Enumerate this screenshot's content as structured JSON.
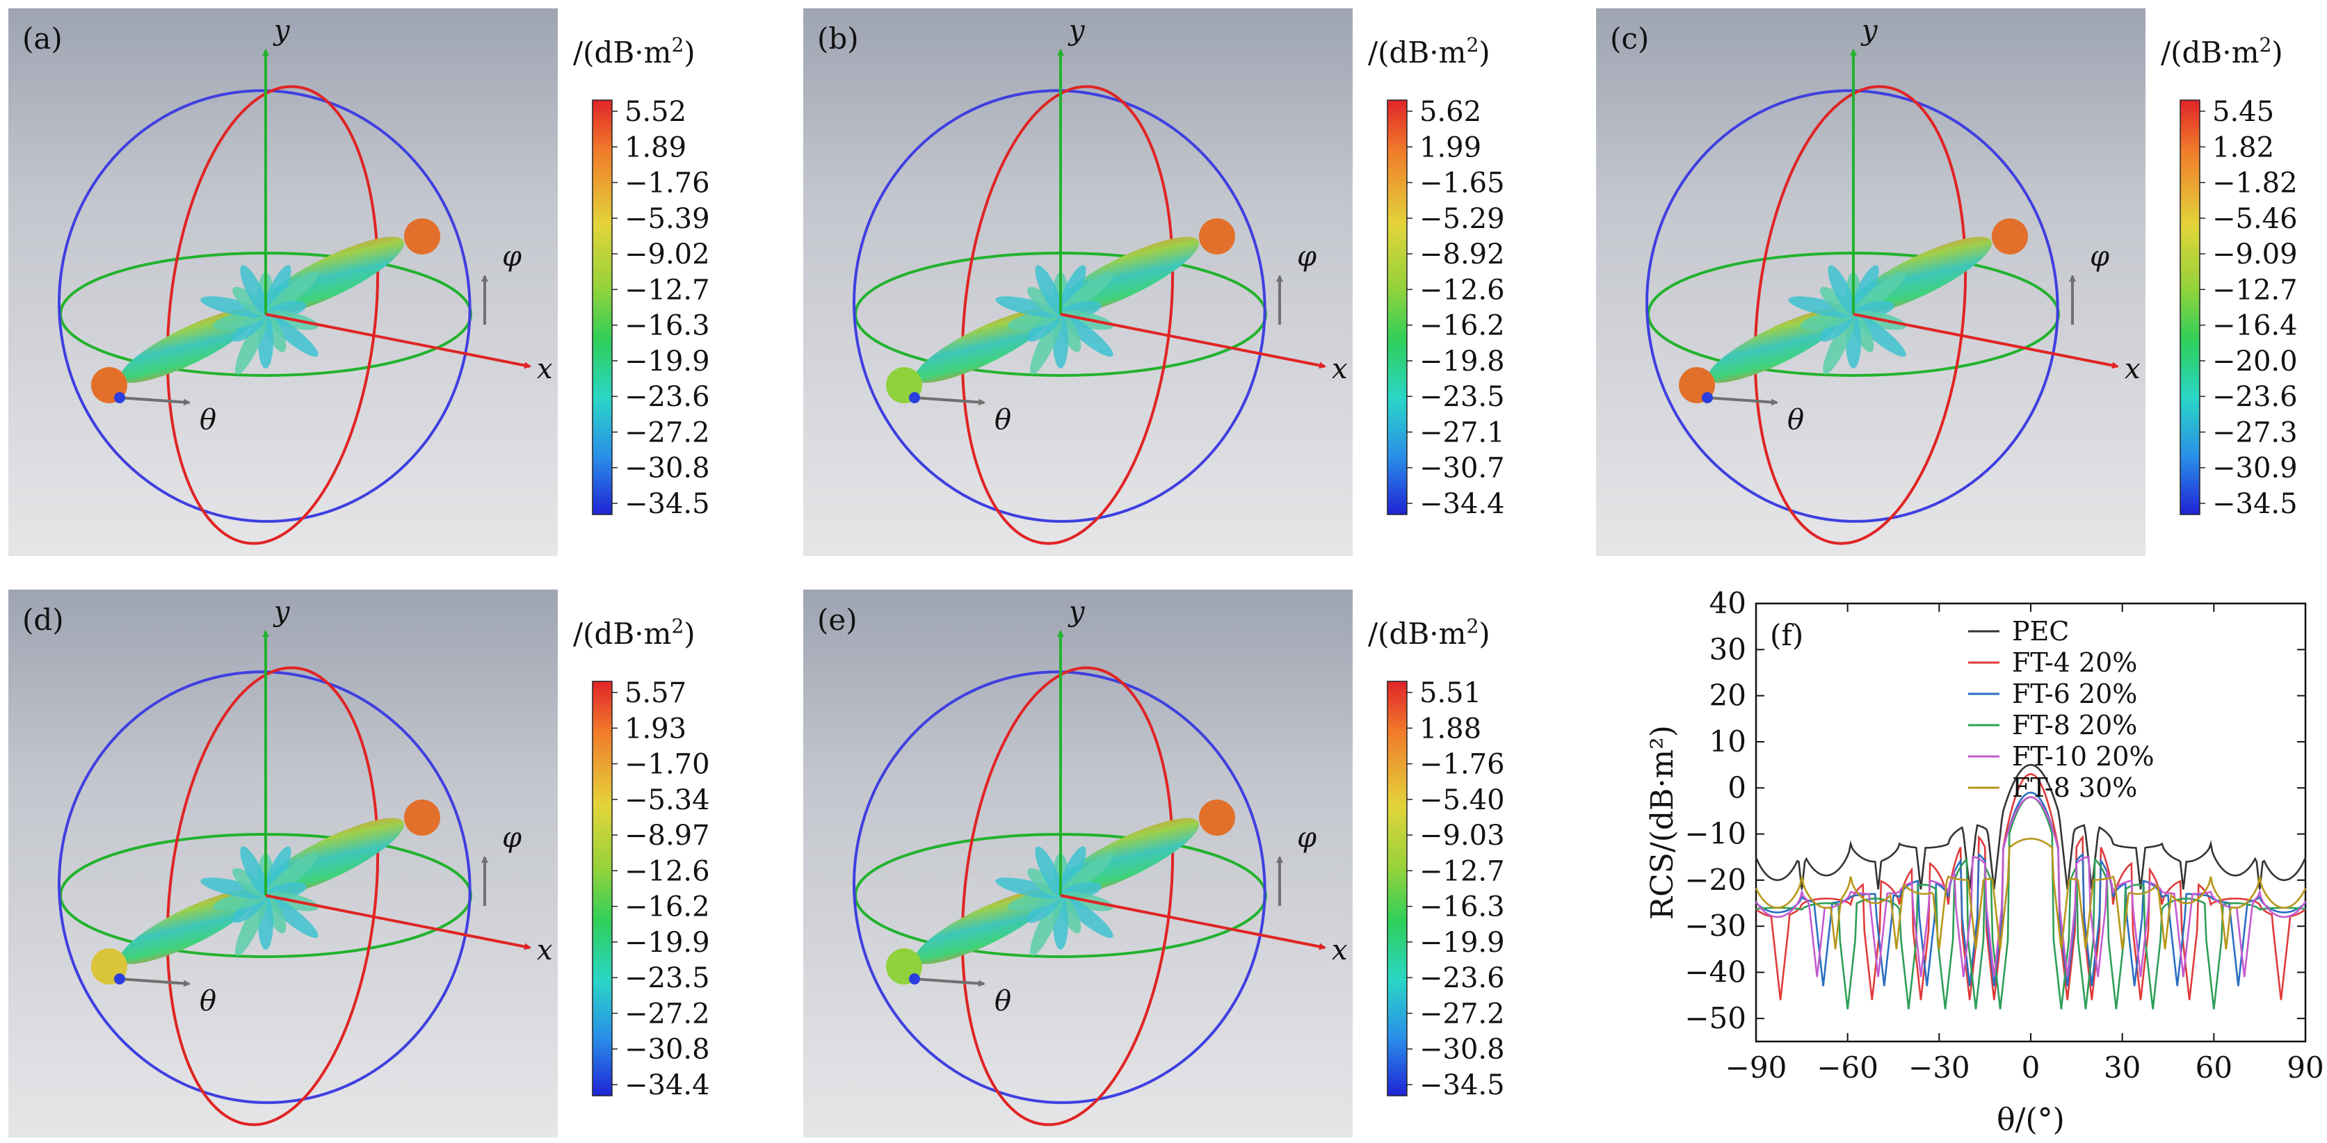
{
  "figure_labels": {
    "unit_title_prefix": "/(dB·m",
    "unit_sup": "2",
    "unit_suffix": ")",
    "axis_x": "x",
    "axis_y": "y",
    "theta": "θ",
    "phi": "φ"
  },
  "panels": [
    {
      "label": "(a)",
      "scale": [
        "5.52",
        "1.89",
        "−1.76",
        "−5.39",
        "−9.02",
        "−12.7",
        "−16.3",
        "−19.9",
        "−23.6",
        "−27.2",
        "−30.8",
        "−34.5"
      ],
      "lobe_tip": "orange"
    },
    {
      "label": "(b)",
      "scale": [
        "5.62",
        "1.99",
        "−1.65",
        "−5.29",
        "−8.92",
        "−12.6",
        "−16.2",
        "−19.8",
        "−23.5",
        "−27.1",
        "−30.7",
        "−34.4"
      ],
      "lobe_tip": "green"
    },
    {
      "label": "(c)",
      "scale": [
        "5.45",
        "1.82",
        "−1.82",
        "−5.46",
        "−9.09",
        "−12.7",
        "−16.4",
        "−20.0",
        "−23.6",
        "−27.3",
        "−30.9",
        "−34.5"
      ],
      "lobe_tip": "orange"
    },
    {
      "label": "(d)",
      "scale": [
        "5.57",
        "1.93",
        "−1.70",
        "−5.34",
        "−8.97",
        "−12.6",
        "−16.2",
        "−19.9",
        "−23.5",
        "−27.2",
        "−30.8",
        "−34.4"
      ],
      "lobe_tip": "yellow"
    },
    {
      "label": "(e)",
      "scale": [
        "5.51",
        "1.88",
        "−1.76",
        "−5.40",
        "−9.03",
        "−12.7",
        "−16.3",
        "−19.9",
        "−23.6",
        "−27.2",
        "−30.8",
        "−34.5"
      ],
      "lobe_tip": "green"
    }
  ],
  "chart_data": {
    "type": "line",
    "panel_label": "(f)",
    "xlabel": "θ/(°)",
    "ylabel": "RCS/(dB·m²)",
    "xlim": [
      -90,
      90
    ],
    "ylim": [
      -55,
      40
    ],
    "xticks": [
      -90,
      -60,
      -30,
      0,
      30,
      60,
      90
    ],
    "yticks": [
      40,
      30,
      20,
      10,
      0,
      -10,
      -20,
      -30,
      -40,
      -50
    ],
    "series": [
      {
        "name": "PEC",
        "color": "#333333",
        "peak": 5,
        "null_depth": -22,
        "nulls": [
          -75,
          -50,
          -36,
          -20,
          -12,
          12,
          20,
          36,
          50,
          75
        ],
        "lobes": [
          -8,
          -13,
          -16,
          -19,
          -20
        ]
      },
      {
        "name": "FT-4 20%",
        "color": "#e03a3a",
        "peak": 3,
        "null_depth": -46,
        "nulls": [
          -82,
          -52,
          -36,
          -20,
          -12,
          12,
          20,
          36,
          52,
          82
        ],
        "lobes": [
          -10,
          -16,
          -20,
          -24,
          -28
        ]
      },
      {
        "name": "FT-6 20%",
        "color": "#2a6fc1",
        "peak": -1,
        "null_depth": -43,
        "nulls": [
          -68,
          -48,
          -34,
          -20,
          -12,
          12,
          20,
          34,
          48,
          68
        ],
        "lobes": [
          -14,
          -20,
          -23,
          -25,
          -27
        ]
      },
      {
        "name": "FT-8 20%",
        "color": "#2e9e57",
        "peak": -2,
        "null_depth": -48,
        "nulls": [
          -60,
          -40,
          -28,
          -18,
          -10,
          10,
          18,
          28,
          40,
          60
        ],
        "lobes": [
          -15,
          -21,
          -24,
          -25,
          -26
        ]
      },
      {
        "name": "FT-10 20%",
        "color": "#c45bd0",
        "peak": -2,
        "null_depth": -41,
        "nulls": [
          -70,
          -50,
          -36,
          -22,
          -12,
          12,
          22,
          36,
          50,
          70
        ],
        "lobes": [
          -15,
          -20,
          -23,
          -26,
          -28
        ]
      },
      {
        "name": "FT-8 30%",
        "color": "#b8961a",
        "peak": -11,
        "null_depth": -35,
        "nulls": [
          -64,
          -44,
          -30,
          -18,
          -10,
          10,
          18,
          30,
          44,
          64
        ],
        "lobes": [
          -20,
          -23,
          -25,
          -26,
          -26
        ]
      }
    ]
  }
}
